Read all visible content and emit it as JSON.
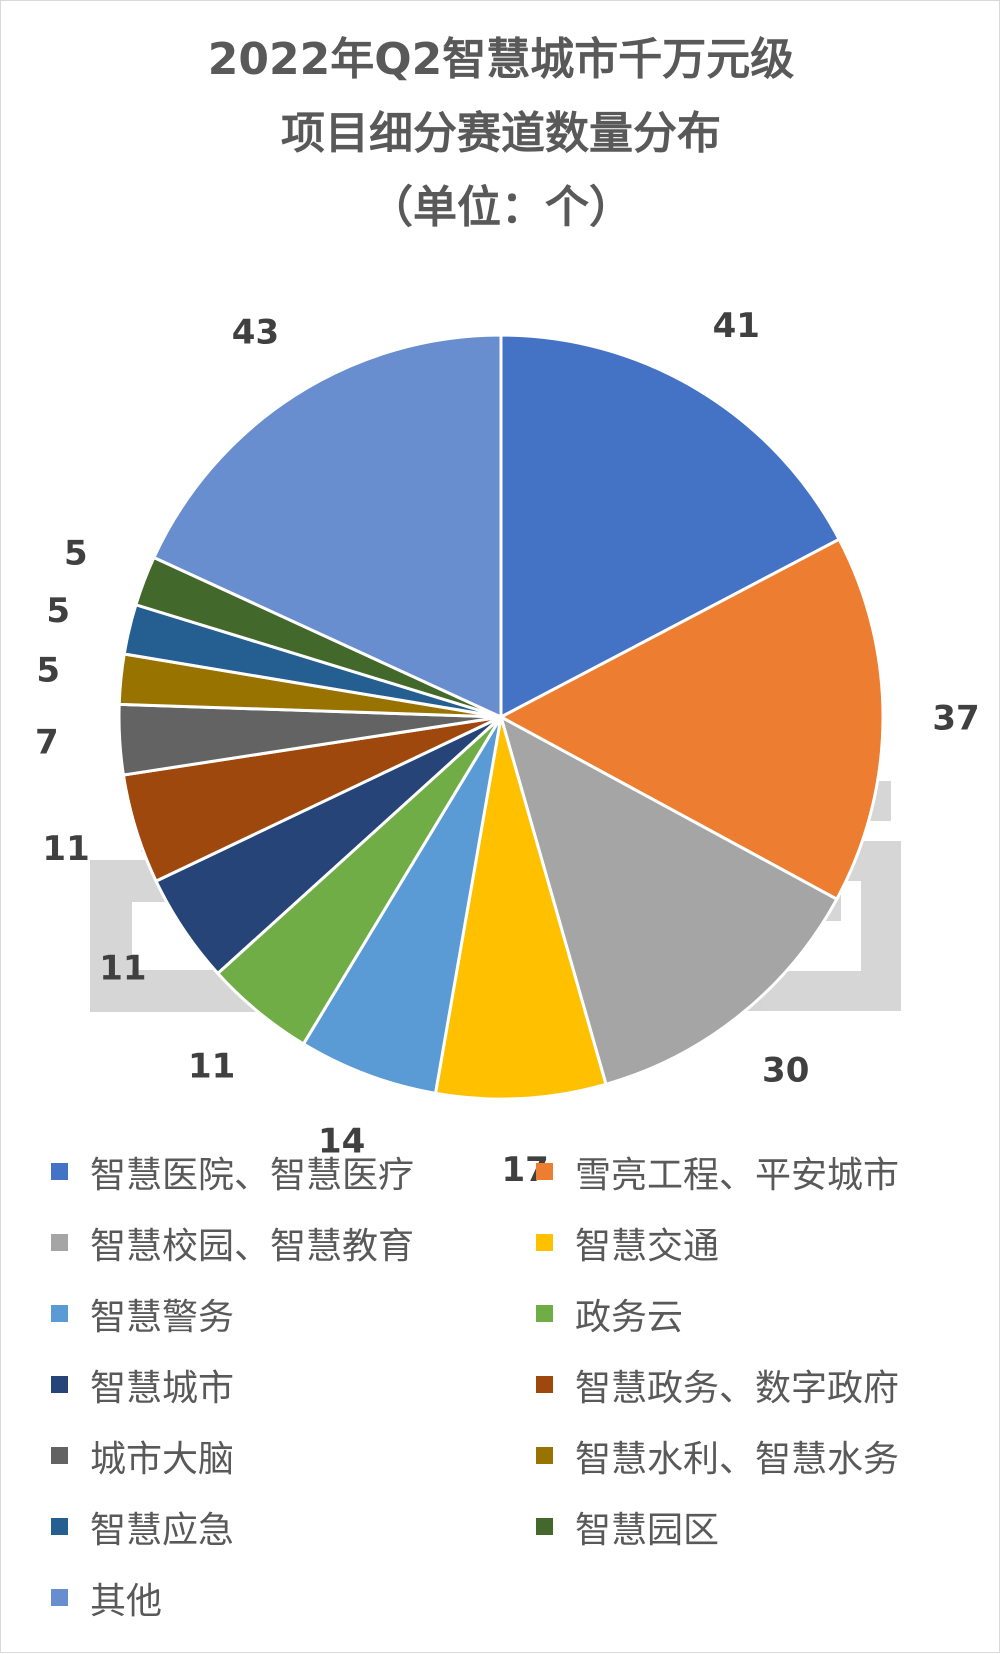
{
  "chart_data": {
    "type": "pie",
    "title_lines": [
      "2022年Q2智慧城市千万元级",
      "项目细分赛道数量分布",
      "（单位：个）"
    ],
    "slices": [
      {
        "label": "智慧医院、智慧医疗",
        "value": 41,
        "color": "#4472C4"
      },
      {
        "label": "雪亮工程、平安城市",
        "value": 37,
        "color": "#ED7D31"
      },
      {
        "label": "智慧校园、智慧教育",
        "value": 30,
        "color": "#A5A5A5"
      },
      {
        "label": "智慧交通",
        "value": 17,
        "color": "#FFC000"
      },
      {
        "label": "智慧警务",
        "value": 14,
        "color": "#5B9BD5"
      },
      {
        "label": "政务云",
        "value": 11,
        "color": "#70AD47"
      },
      {
        "label": "智慧城市",
        "value": 11,
        "color": "#264478"
      },
      {
        "label": "智慧政务、数字政府",
        "value": 11,
        "color": "#9E480E"
      },
      {
        "label": "城市大脑",
        "value": 7,
        "color": "#636363"
      },
      {
        "label": "智慧水利、智慧水务",
        "value": 5,
        "color": "#997300"
      },
      {
        "label": "智慧应急",
        "value": 5,
        "color": "#255E91"
      },
      {
        "label": "智慧园区",
        "value": 5,
        "color": "#43682B"
      },
      {
        "label": "其他",
        "value": 43,
        "color": "#698ED0"
      }
    ],
    "legend_position": "bottom"
  }
}
